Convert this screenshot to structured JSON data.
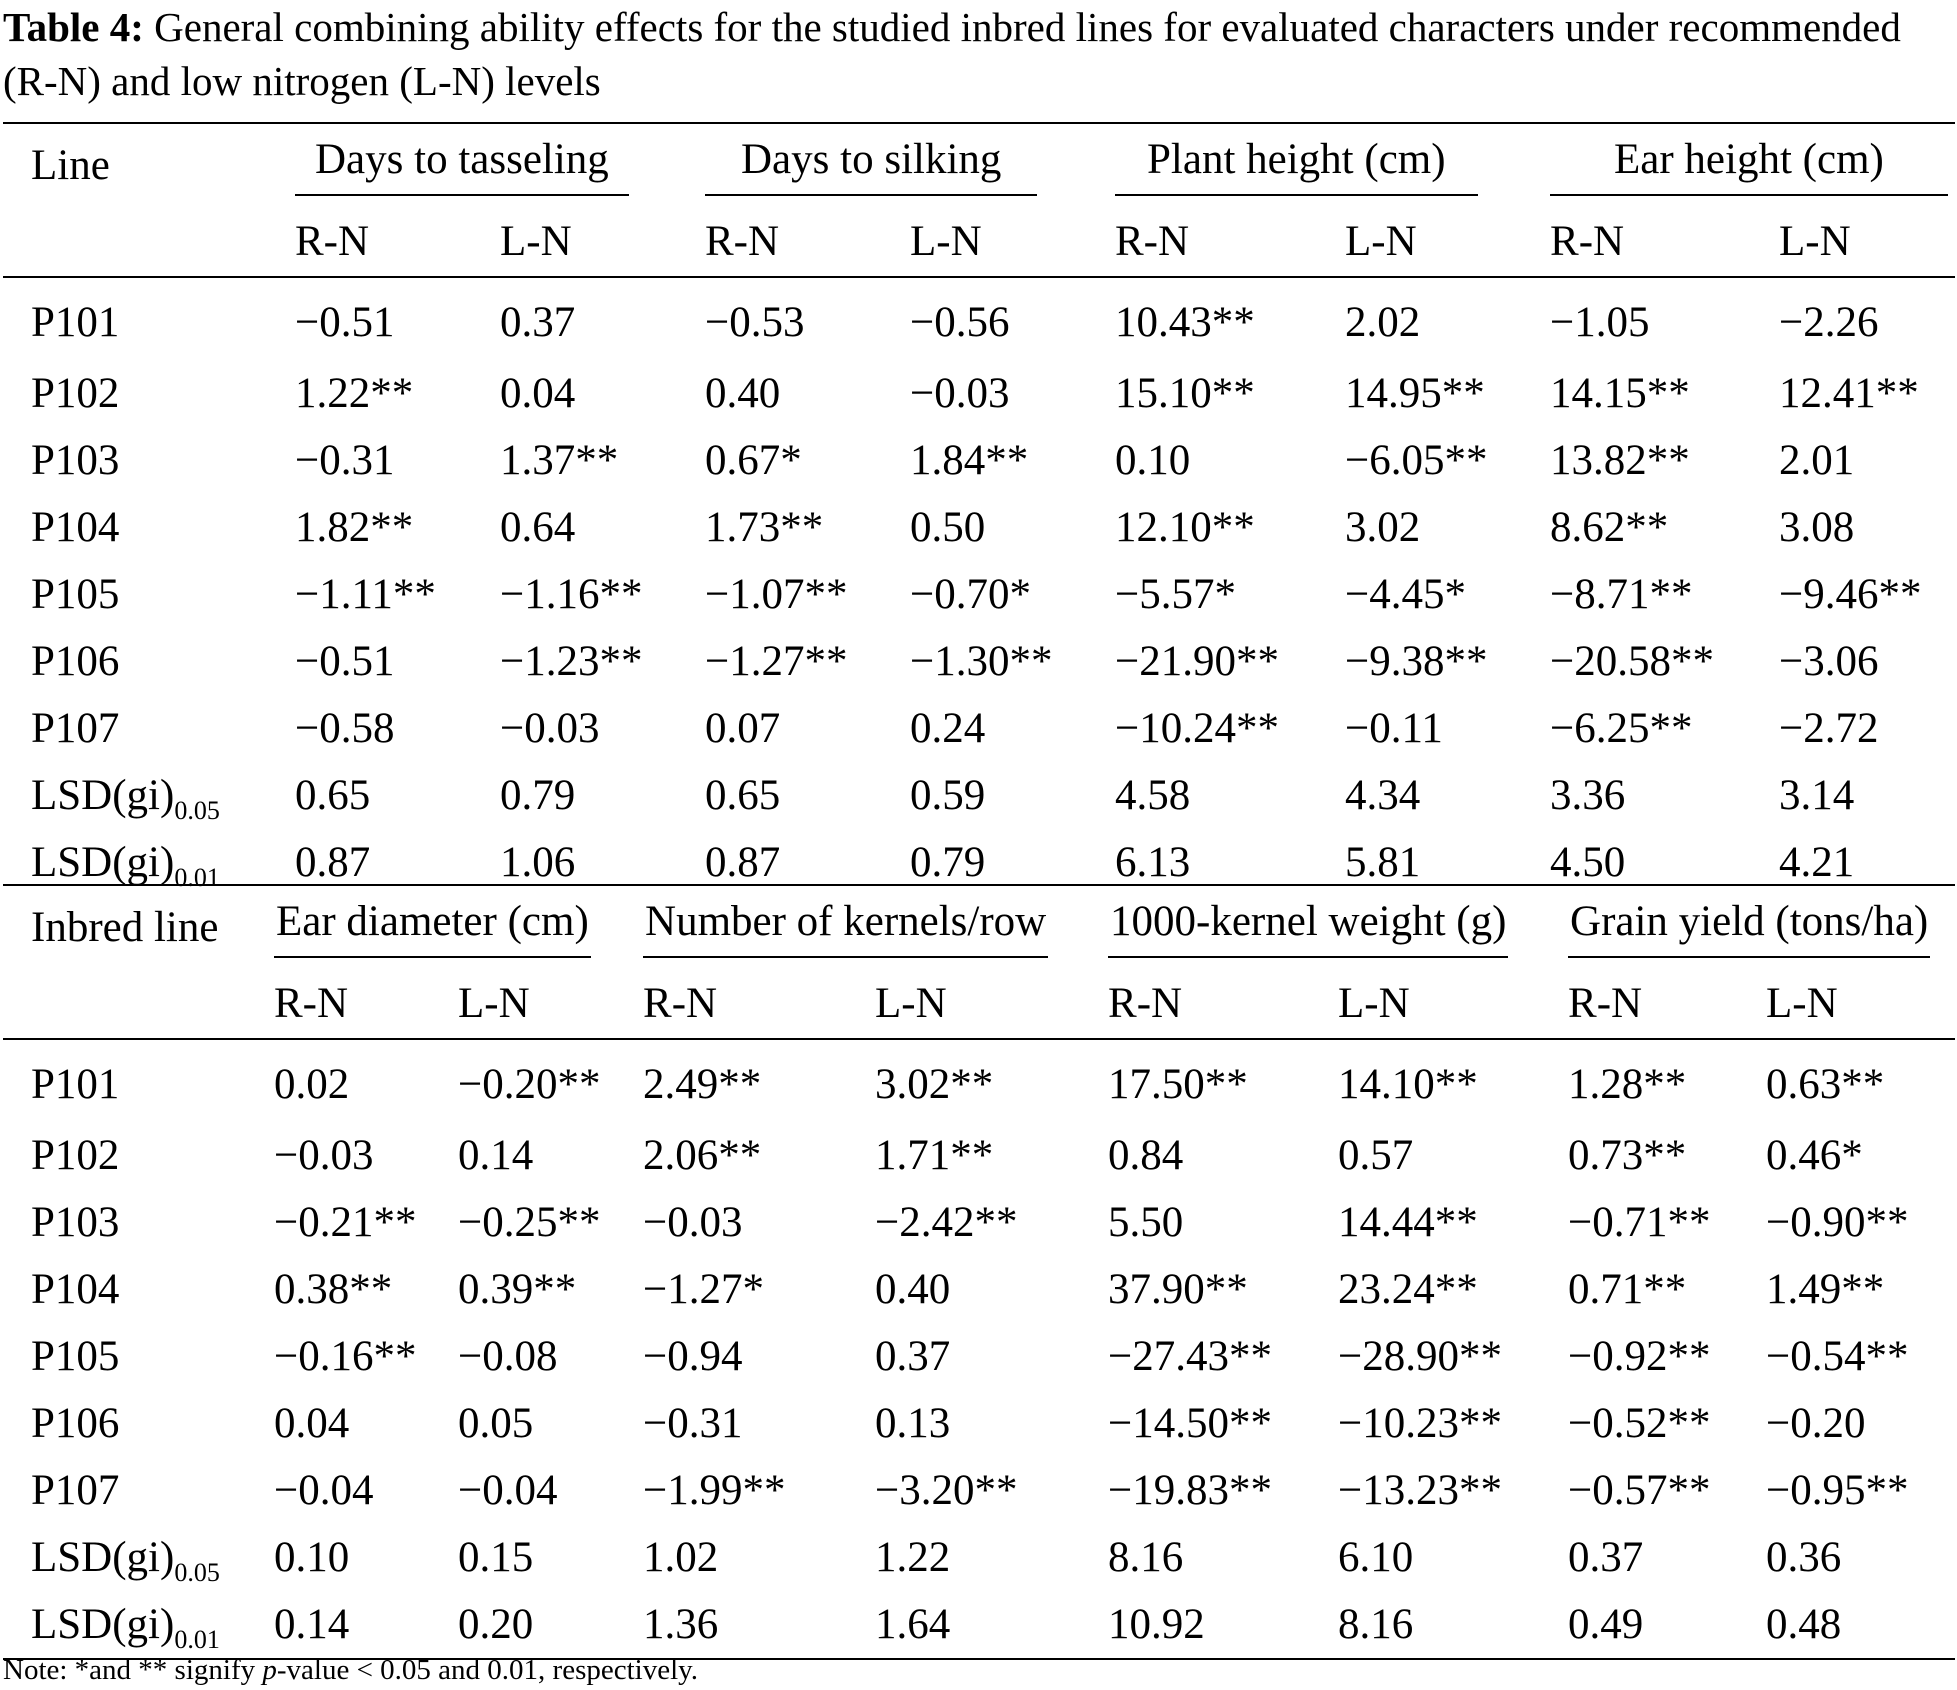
{
  "caption": {
    "label": "Table 4:",
    "text": "General combining ability effects for the studied inbred lines for evaluated characters under recommended (R-N) and low nitrogen (L-N) levels"
  },
  "table1": {
    "row_header": "Line",
    "groups": [
      "Days to tasseling",
      "Days to silking",
      "Plant height (cm)",
      "Ear height (cm)"
    ],
    "subheaders": [
      "R-N",
      "L-N",
      "R-N",
      "L-N",
      "R-N",
      "L-N",
      "R-N",
      "L-N"
    ],
    "rows": [
      {
        "label": "P101",
        "cells": [
          "−0.51",
          "0.37",
          "−0.53",
          "−0.56",
          "10.43**",
          "2.02",
          "−1.05",
          "−2.26"
        ]
      },
      {
        "label": "P102",
        "cells": [
          "1.22**",
          "0.04",
          "0.40",
          "−0.03",
          "15.10**",
          "14.95**",
          "14.15**",
          "12.41**"
        ]
      },
      {
        "label": "P103",
        "cells": [
          "−0.31",
          "1.37**",
          "0.67*",
          "1.84**",
          "0.10",
          "−6.05**",
          "13.82**",
          "2.01"
        ]
      },
      {
        "label": "P104",
        "cells": [
          "1.82**",
          "0.64",
          "1.73**",
          "0.50",
          "12.10**",
          "3.02",
          "8.62**",
          "3.08"
        ]
      },
      {
        "label": "P105",
        "cells": [
          "−1.11**",
          "−1.16**",
          "−1.07**",
          "−0.70*",
          "−5.57*",
          "−4.45*",
          "−8.71**",
          "−9.46**"
        ]
      },
      {
        "label": "P106",
        "cells": [
          "−0.51",
          "−1.23**",
          "−1.27**",
          "−1.30**",
          "−21.90**",
          "−9.38**",
          "−20.58**",
          "−3.06"
        ]
      },
      {
        "label": "P107",
        "cells": [
          "−0.58",
          "−0.03",
          "0.07",
          "0.24",
          "−10.24**",
          "−0.11",
          "−6.25**",
          "−2.72"
        ]
      }
    ],
    "lsd": [
      {
        "base": "LSD(gi)",
        "sub": "0.05",
        "cells": [
          "0.65",
          "0.79",
          "0.65",
          "0.59",
          "4.58",
          "4.34",
          "3.36",
          "3.14"
        ]
      },
      {
        "base": "LSD(gi)",
        "sub": "0.01",
        "cells": [
          "0.87",
          "1.06",
          "0.87",
          "0.79",
          "6.13",
          "5.81",
          "4.50",
          "4.21"
        ]
      }
    ]
  },
  "table2": {
    "row_header": "Inbred line",
    "groups": [
      "Ear diameter (cm)",
      "Number of kernels/row",
      "1000-kernel weight (g)",
      "Grain yield (tons/ha)"
    ],
    "subheaders": [
      "R-N",
      "L-N",
      "R-N",
      "L-N",
      "R-N",
      "L-N",
      "R-N",
      "L-N"
    ],
    "rows": [
      {
        "label": "P101",
        "cells": [
          "0.02",
          "−0.20**",
          "2.49**",
          "3.02**",
          "17.50**",
          "14.10**",
          "1.28**",
          "0.63**"
        ]
      },
      {
        "label": "P102",
        "cells": [
          "−0.03",
          "0.14",
          "2.06**",
          "1.71**",
          "0.84",
          "0.57",
          "0.73**",
          "0.46*"
        ]
      },
      {
        "label": "P103",
        "cells": [
          "−0.21**",
          "−0.25**",
          "−0.03",
          "−2.42**",
          "5.50",
          "14.44**",
          "−0.71**",
          "−0.90**"
        ]
      },
      {
        "label": "P104",
        "cells": [
          "0.38**",
          "0.39**",
          "−1.27*",
          "0.40",
          "37.90**",
          "23.24**",
          "0.71**",
          "1.49**"
        ]
      },
      {
        "label": "P105",
        "cells": [
          "−0.16**",
          "−0.08",
          "−0.94",
          "0.37",
          "−27.43**",
          "−28.90**",
          "−0.92**",
          "−0.54**"
        ]
      },
      {
        "label": "P106",
        "cells": [
          "0.04",
          "0.05",
          "−0.31",
          "0.13",
          "−14.50**",
          "−10.23**",
          "−0.52**",
          "−0.20"
        ]
      },
      {
        "label": "P107",
        "cells": [
          "−0.04",
          "−0.04",
          "−1.99**",
          "−3.20**",
          "−19.83**",
          "−13.23**",
          "−0.57**",
          "−0.95**"
        ]
      }
    ],
    "lsd": [
      {
        "base": "LSD(gi)",
        "sub": "0.05",
        "cells": [
          "0.10",
          "0.15",
          "1.02",
          "1.22",
          "8.16",
          "6.10",
          "0.37",
          "0.36"
        ]
      },
      {
        "base": "LSD(gi)",
        "sub": "0.01",
        "cells": [
          "0.14",
          "0.20",
          "1.36",
          "1.64",
          "10.92",
          "8.16",
          "0.49",
          "0.48"
        ]
      }
    ]
  },
  "note": {
    "prefix": "Note: *and ** signify ",
    "p": "p",
    "suffix": "-value < 0.05 and 0.01, respectively."
  }
}
